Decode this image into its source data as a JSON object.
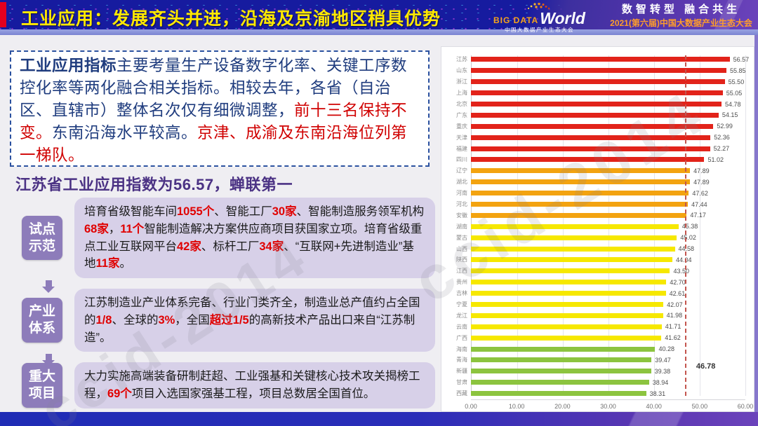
{
  "header": {
    "title": "工业应用：发展齐头并进，沿海及京渝地区稍具优势",
    "logo": {
      "big_data": "BIG DATA",
      "world": "World",
      "sub": "中国大数据产业生态大会"
    },
    "slogan": "数智转型 融合共生",
    "conference": "2021(第六届)中国大数据产业生态大会"
  },
  "intro": {
    "segments": [
      {
        "t": "工业应用指标",
        "s": "b"
      },
      {
        "t": "主要考量生产设备数字化率、关键工序数控化率等两化融合相关指标。相较去年，各省（自治区、直辖市）整体名次仅有细微调整，",
        "s": "n"
      },
      {
        "t": "前十三名保持不变。",
        "s": "r"
      },
      {
        "t": "东南沿海水平较高。",
        "s": "n"
      },
      {
        "t": "京津、成渝及东南沿海位列第一梯队。",
        "s": "r"
      }
    ]
  },
  "subtitle": "江苏省工业应用指数为56.57，蝉联第一",
  "stages": [
    {
      "label_line1": "试点",
      "label_line2": "示范",
      "segments": [
        {
          "t": "培育省级智能车间",
          "s": "n"
        },
        {
          "t": "1055个",
          "s": "rb"
        },
        {
          "t": "、智能工厂",
          "s": "n"
        },
        {
          "t": "30家",
          "s": "rb"
        },
        {
          "t": "、智能制造服务领军机构",
          "s": "n"
        },
        {
          "t": "68家",
          "s": "rb"
        },
        {
          "t": "，",
          "s": "n"
        },
        {
          "t": "11个",
          "s": "rb"
        },
        {
          "t": "智能制造解决方案供应商项目获国家立项。培育省级重点工业互联网平台",
          "s": "n"
        },
        {
          "t": "42家",
          "s": "rb"
        },
        {
          "t": "、标杆工厂",
          "s": "n"
        },
        {
          "t": "34家",
          "s": "rb"
        },
        {
          "t": "、“互联网+先进制造业”基地",
          "s": "n"
        },
        {
          "t": "11家",
          "s": "rb"
        },
        {
          "t": "。",
          "s": "n"
        }
      ]
    },
    {
      "label_line1": "产业",
      "label_line2": "体系",
      "segments": [
        {
          "t": "江苏制造业产业体系完备、行业门类齐全，制造业总产值约占全国的",
          "s": "n"
        },
        {
          "t": "1/8",
          "s": "rb"
        },
        {
          "t": "、全球的",
          "s": "n"
        },
        {
          "t": "3%",
          "s": "rb"
        },
        {
          "t": "，全国",
          "s": "n"
        },
        {
          "t": "超过1/5",
          "s": "rb"
        },
        {
          "t": "的高新技术产品出口来自“江苏制造”。",
          "s": "n"
        }
      ]
    },
    {
      "label_line1": "重大",
      "label_line2": "项目",
      "segments": [
        {
          "t": "大力实施高端装备研制赶超、工业强基和关键核心技术攻关揭榜工程，",
          "s": "n"
        },
        {
          "t": "69个",
          "s": "rb"
        },
        {
          "t": "项目入选国家强基工程，项目总数居全国首位。",
          "s": "n"
        }
      ]
    }
  ],
  "chart_data": {
    "type": "bar",
    "orientation": "horizontal",
    "categories": [
      "江苏",
      "山东",
      "浙江",
      "上海",
      "北京",
      "广东",
      "重庆",
      "天津",
      "福建",
      "四川",
      "辽宁",
      "湖北",
      "河南",
      "河北",
      "安徽",
      "湖南",
      "蒙古",
      "山西",
      "陕西",
      "江西",
      "贵州",
      "吉林",
      "宁夏",
      "龙江",
      "云南",
      "广西",
      "海南",
      "青海",
      "新疆",
      "甘肃",
      "西藏"
    ],
    "values": [
      56.57,
      55.85,
      55.5,
      55.05,
      54.78,
      54.15,
      52.99,
      52.36,
      52.27,
      51.02,
      47.89,
      47.89,
      47.62,
      47.44,
      47.17,
      45.38,
      45.02,
      44.58,
      44.04,
      43.5,
      42.7,
      42.61,
      42.07,
      41.98,
      41.71,
      41.62,
      40.28,
      39.47,
      39.38,
      38.94,
      38.31
    ],
    "groups": [
      "red",
      "red",
      "red",
      "red",
      "red",
      "red",
      "red",
      "red",
      "red",
      "red",
      "orange",
      "orange",
      "orange",
      "orange",
      "orange",
      "yellow",
      "yellow",
      "yellow",
      "yellow",
      "yellow",
      "yellow",
      "yellow",
      "yellow",
      "yellow",
      "yellow",
      "yellow",
      "green",
      "green",
      "green",
      "green",
      "green"
    ],
    "palette": {
      "red": "#e2231a",
      "orange": "#f3a310",
      "yellow": "#f6e800",
      "green": "#8cc43f"
    },
    "xlim": [
      0,
      60
    ],
    "xticks": [
      "0.00",
      "10.00",
      "20.00",
      "30.00",
      "40.00",
      "50.00",
      "60.00"
    ],
    "grid": true,
    "legend": false,
    "average_line": 46.78,
    "average_label": "46.78"
  },
  "watermark": {
    "text": "ccid-2014"
  },
  "colors": {
    "header_blue": "#161b9f",
    "title_yellow": "#ffe800",
    "accent_red": "#e3001f",
    "intro_blue": "#1f3c7e",
    "highlight_red": "#d00000",
    "stage_purple": "#8d7cba",
    "stage_box": "#d7d0e8",
    "subtitle_purple": "#4b3284",
    "avg_line": "#c3554e"
  }
}
